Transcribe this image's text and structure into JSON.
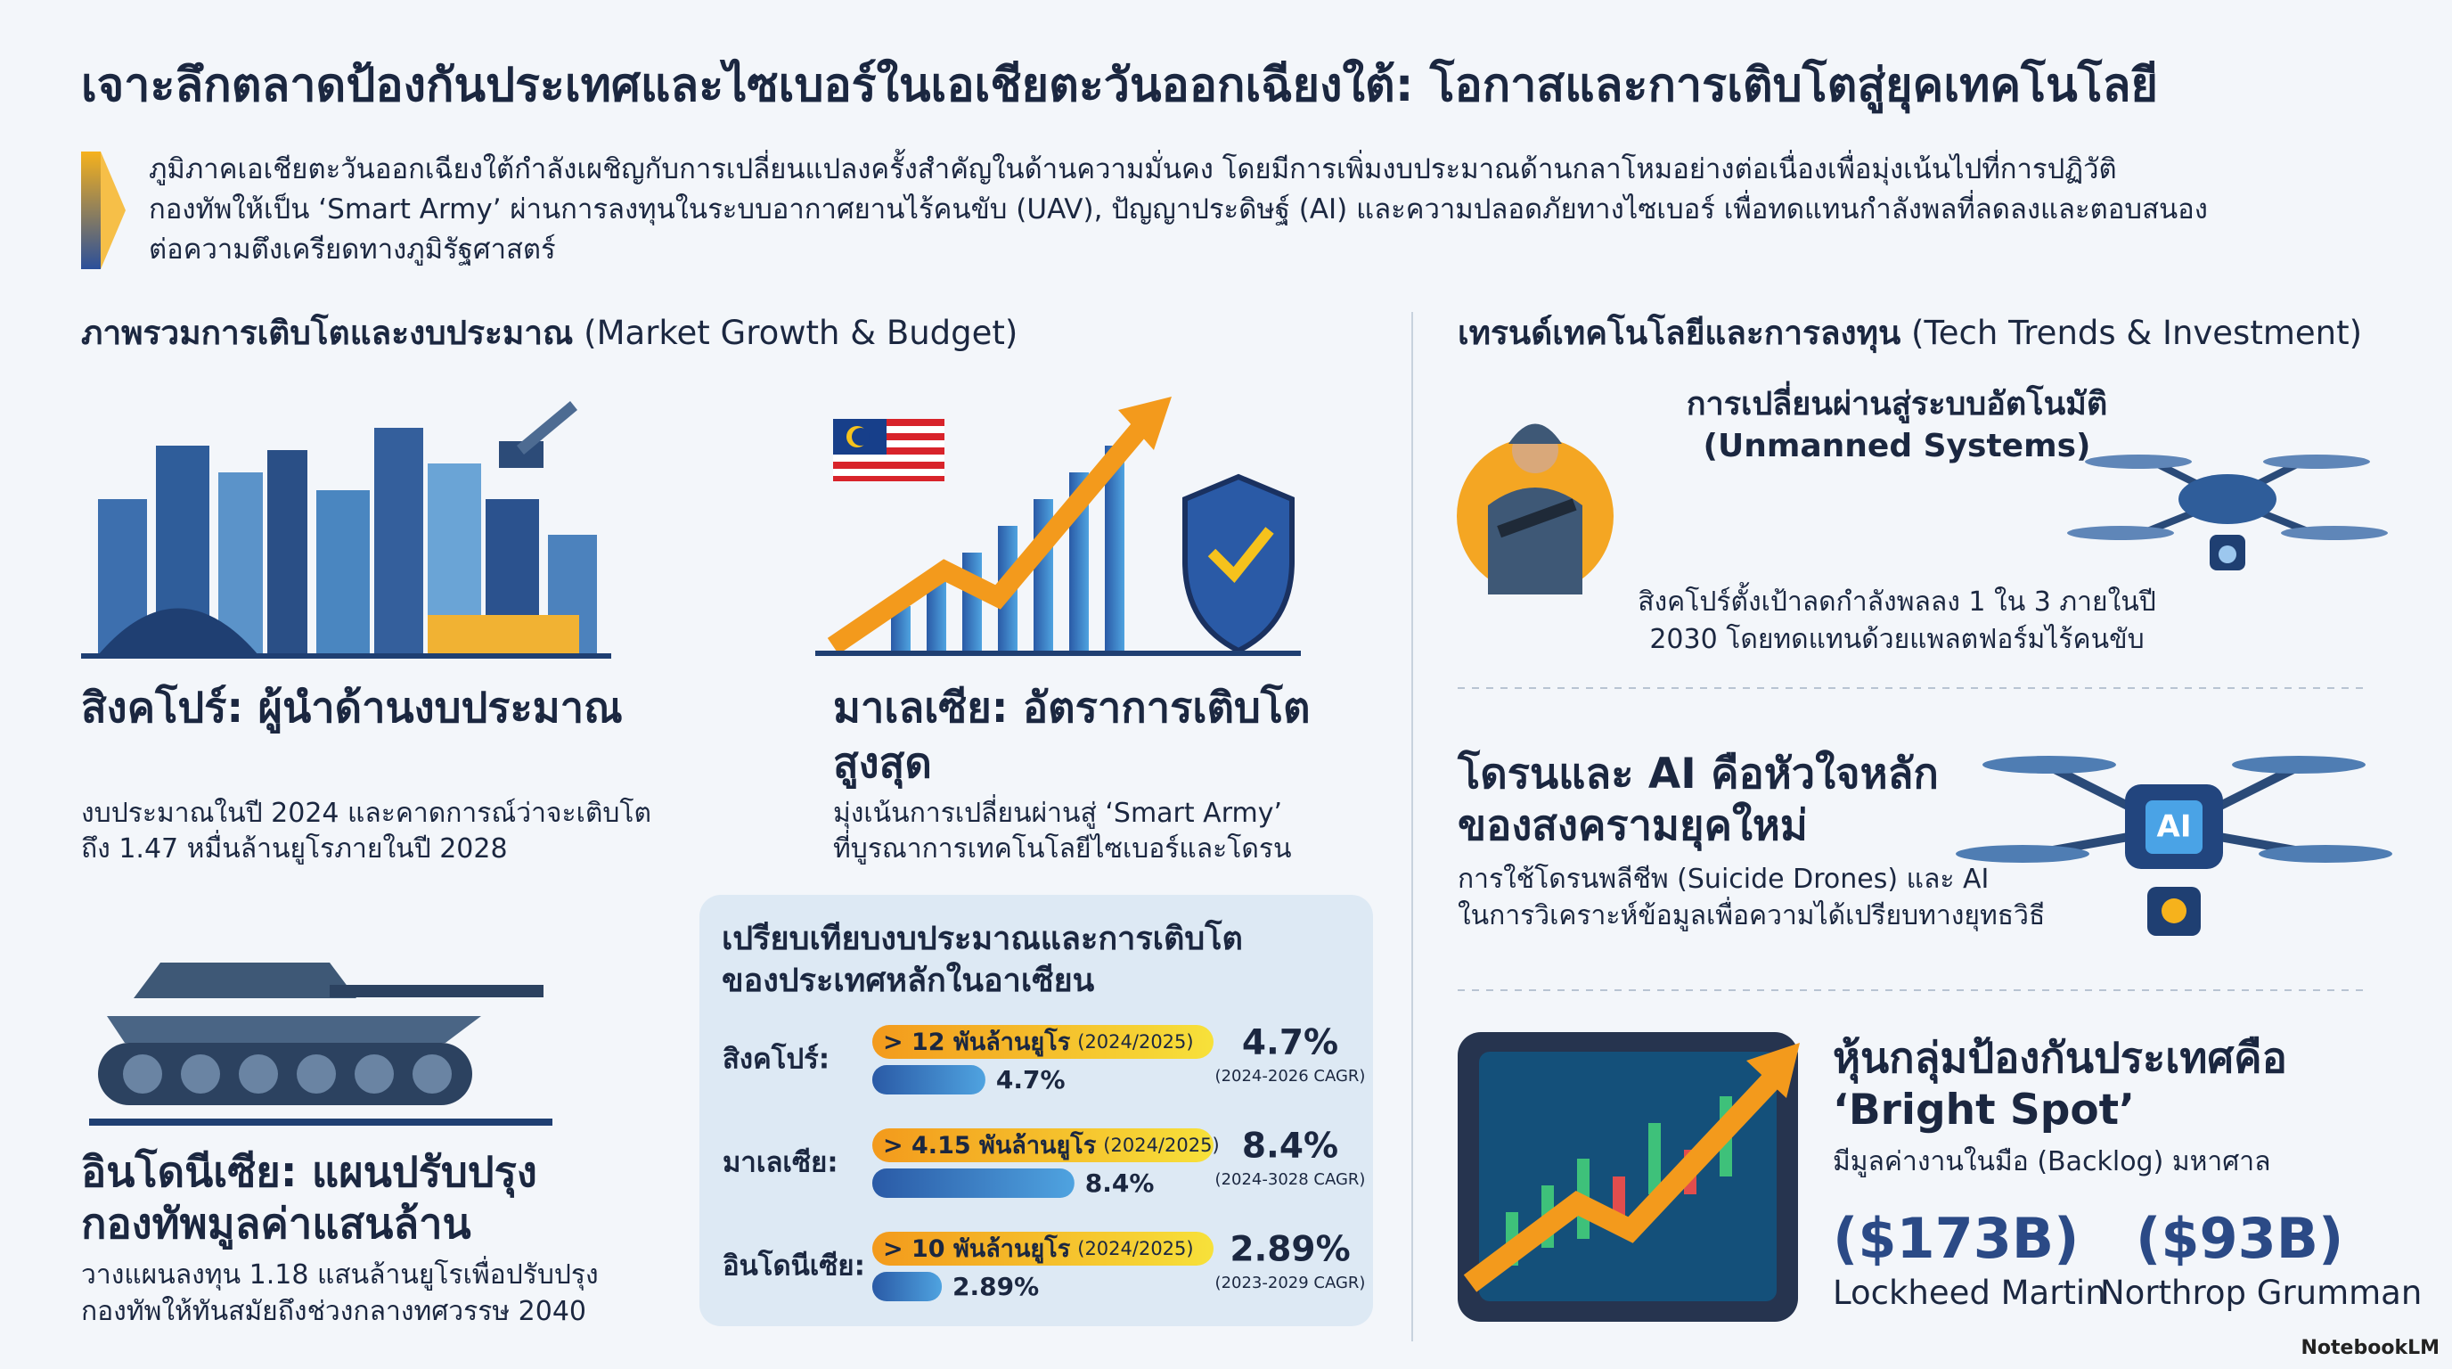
{
  "header": {
    "title": "เจาะลึกตลาดป้องกันประเทศและไซเบอร์ในเอเชียตะวันออกเฉียงใต้: โอกาสและการเติบโตสู่ยุคเทคโนโลยี",
    "intro": [
      "ภูมิภาคเอเชียตะวันออกเฉียงใต้กำลังเผชิญกับการเปลี่ยนแปลงครั้งสำคัญในด้านความมั่นคง โดยมีการเพิ่มงบประมาณด้านกลาโหมอย่างต่อเนื่องเพื่อมุ่งเน้นไปที่การปฏิวัติ",
      "กองทัพให้เป็น ‘Smart Army’ ผ่านการลงทุนในระบบอากาศยานไร้คนขับ (UAV), ปัญญาประดิษฐ์ (AI) และความปลอดภัยทางไซเบอร์ เพื่อทดแทนกำลังพลที่ลดลงและตอบสนอง",
      "ต่อความตึงเครียดทางภูมิรัฐศาสตร์"
    ]
  },
  "left": {
    "heading": "ภาพรวมการเติบโตและงบประมาณ",
    "heading_en": "(Market Growth & Budget)",
    "singapore": {
      "title": [
        "สิงคโปร์: ผู้นำด้านงบประมาณ"
      ],
      "text": [
        "งบประมาณในปี 2024 และคาดการณ์ว่าจะเติบโต",
        "ถึง 1.47 หมื่นล้านยูโรภายในปี 2028"
      ]
    },
    "malaysia": {
      "title": [
        "มาเลเซีย: อัตราการเติบโต",
        "สูงสุด"
      ],
      "text": [
        "มุ่งเน้นการเปลี่ยนผ่านสู่ ‘Smart Army’",
        "ที่บูรณาการเทคโนโลยีไซเบอร์และโดรน"
      ]
    },
    "indonesia": {
      "title": [
        "อินโดนีเซีย: แผนปรับปรุง",
        "กองทัพมูลค่าแสนล้าน"
      ],
      "text": [
        "วางแผนลงทุน 1.18 แสนล้านยูโรเพื่อปรับปรุง",
        "กองทัพให้ทันสมัยถึงช่วงกลางทศวรรษ 2040"
      ]
    },
    "comparison": {
      "title": [
        "เปรียบเทียบงบประมาณและการเติบโต",
        "ของประเทศหลักในอาเซียน"
      ],
      "rows": [
        {
          "country": "สิงคโปร์:",
          "budget": "> 12 พันล้านยูโร",
          "budget_period": "(2024/2025)",
          "growth": {
            "value": 4.7,
            "label": "4.7%"
          },
          "growth_period": "(2024-2026 CAGR)"
        },
        {
          "country": "มาเลเซีย:",
          "budget": "> 4.15 พันล้านยูโร",
          "budget_period": "(2024/2025)",
          "growth": {
            "value": 8.4,
            "label": "8.4%"
          },
          "growth_period": "(2024-3028 CAGR)"
        },
        {
          "country": "อินโดนีเซีย:",
          "budget": "> 10 พันล้านยูโร",
          "budget_period": "(2024/2025)",
          "growth": {
            "value": 2.89,
            "label": "2.89%"
          },
          "growth_period": "(2023-2029 CAGR)"
        }
      ]
    }
  },
  "right": {
    "heading": "เทรนด์เทคโนโลยีและการลงทุน",
    "heading_en": "(Tech Trends & Investment)",
    "unmanned": {
      "title": [
        "การเปลี่ยนผ่านสู่ระบบอัตโนมัติ",
        "(Unmanned Systems)"
      ],
      "text": [
        "สิงคโปร์ตั้งเป้าลดกำลังพลลง 1 ใน 3 ภายในปี",
        "2030 โดยทดแทนด้วยแพลตฟอร์มไร้คนขับ"
      ]
    },
    "drones": {
      "title": [
        "โดรนและ AI คือหัวใจหลัก",
        "ของสงครามยุคใหม่"
      ],
      "text": [
        "การใช้โดรนพลีชีพ (Suicide Drones) และ AI",
        "ในการวิเคราะห์ข้อมูลเพื่อความได้เปรียบทางยุทธวิธี"
      ],
      "chip": "AI"
    },
    "stocks": {
      "title": [
        "หุ้นกลุ่มป้องกันประเทศคือ",
        "‘Bright Spot’"
      ],
      "text": "มีมูลค่างานในมือ (Backlog) มหาศาล",
      "companies": [
        {
          "backlog": "($173B)",
          "name": "Lockheed Martin"
        },
        {
          "backlog": "($93B)",
          "name": "Northrop Grumman"
        }
      ]
    }
  },
  "footer": "NotebookLM"
}
